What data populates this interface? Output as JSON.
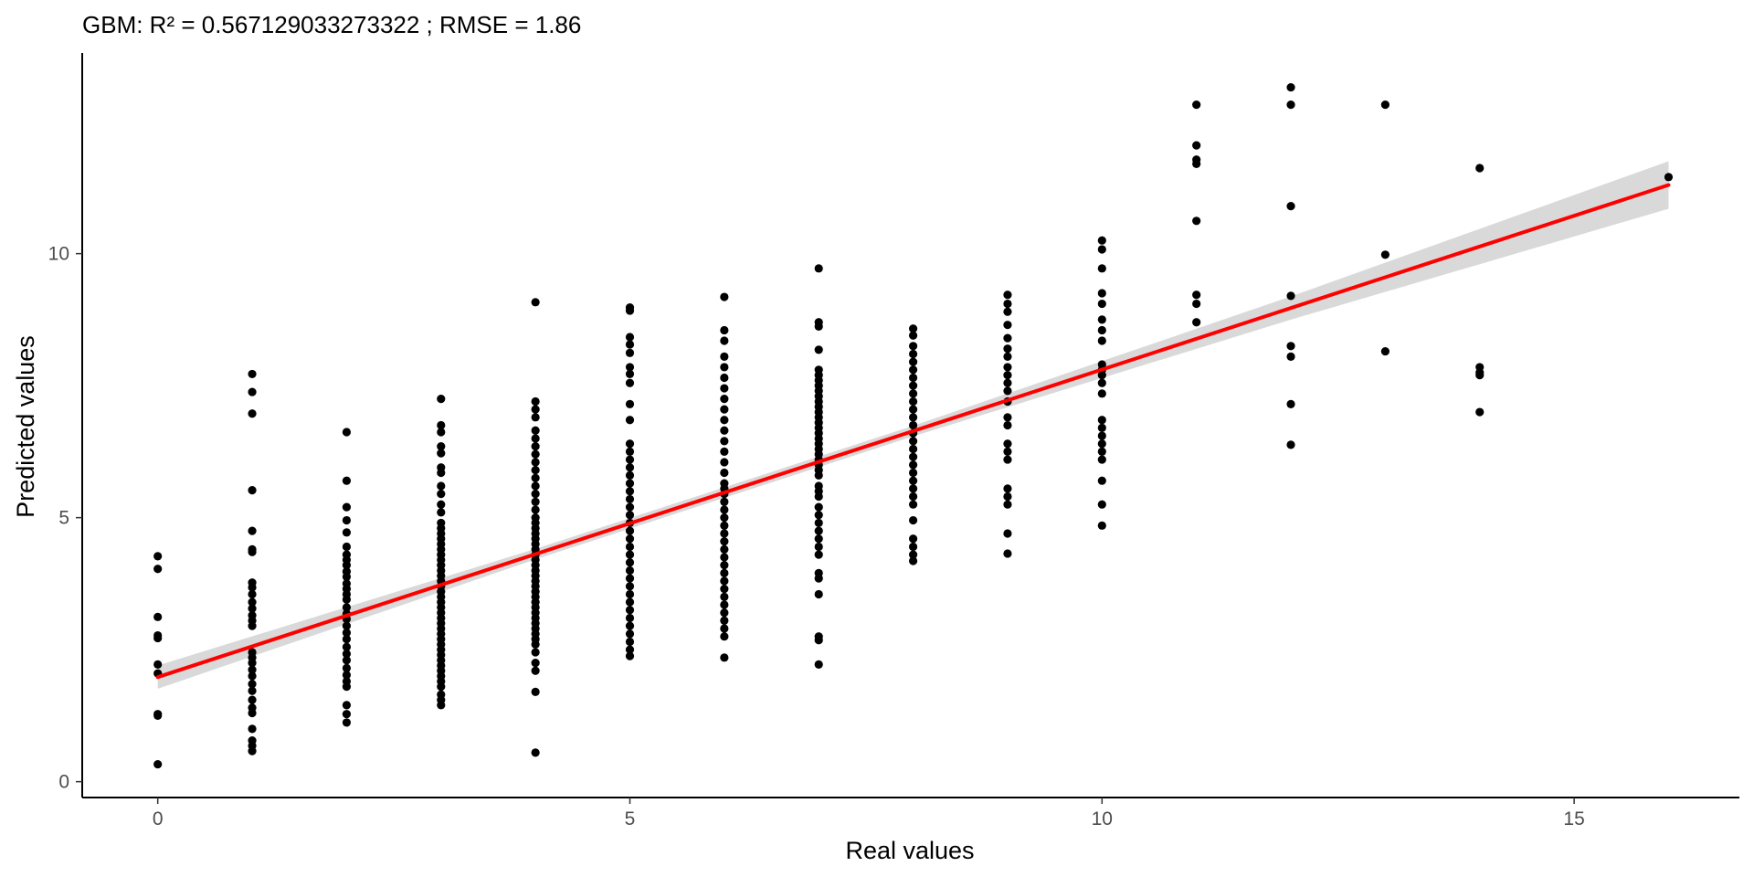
{
  "chart_data": {
    "type": "scatter",
    "title": "GBM: R² =  0.567129033273322 ; RMSE =  1.86",
    "xlabel": "Real values",
    "ylabel": "Predicted values",
    "xlim": [
      -0.8,
      16.75
    ],
    "ylim": [
      -0.3,
      13.8
    ],
    "x_ticks": [
      0,
      5,
      10,
      15
    ],
    "y_ticks": [
      0,
      5,
      10
    ],
    "grid": false,
    "legend": "none",
    "colors": {
      "points": "#000000",
      "fit_line": "#ff0000",
      "confidence_band": "#d9d9d9",
      "axis": "#000000",
      "tick_text": "#4d4d4d"
    },
    "fit_line": {
      "method": "linear",
      "x": [
        0,
        16
      ],
      "y": [
        1.98,
        11.3
      ],
      "ci_halfwidth_at": {
        "0": 0.22,
        "4": 0.1,
        "8": 0.1,
        "12": 0.22,
        "16": 0.45
      }
    },
    "points": [
      [
        0,
        4.27
      ],
      [
        0,
        4.03
      ],
      [
        0,
        3.12
      ],
      [
        0,
        2.77
      ],
      [
        0,
        2.72
      ],
      [
        0,
        2.22
      ],
      [
        0,
        2.05
      ],
      [
        0,
        1.28
      ],
      [
        0,
        1.25
      ],
      [
        0,
        0.33
      ],
      [
        1,
        7.72
      ],
      [
        1,
        7.38
      ],
      [
        1,
        6.97
      ],
      [
        1,
        5.52
      ],
      [
        1,
        4.75
      ],
      [
        1,
        4.4
      ],
      [
        1,
        4.35
      ],
      [
        1,
        3.77
      ],
      [
        1,
        3.68
      ],
      [
        1,
        3.55
      ],
      [
        1,
        3.4
      ],
      [
        1,
        3.28
      ],
      [
        1,
        3.15
      ],
      [
        1,
        3.05
      ],
      [
        1,
        2.95
      ],
      [
        1,
        2.45
      ],
      [
        1,
        2.35
      ],
      [
        1,
        2.25
      ],
      [
        1,
        2.12
      ],
      [
        1,
        2.0
      ],
      [
        1,
        1.85
      ],
      [
        1,
        1.72
      ],
      [
        1,
        1.55
      ],
      [
        1,
        1.4
      ],
      [
        1,
        1.3
      ],
      [
        1,
        1.0
      ],
      [
        1,
        0.78
      ],
      [
        1,
        0.68
      ],
      [
        1,
        0.58
      ],
      [
        2,
        6.62
      ],
      [
        2,
        5.7
      ],
      [
        2,
        5.2
      ],
      [
        2,
        4.95
      ],
      [
        2,
        4.72
      ],
      [
        2,
        4.45
      ],
      [
        2,
        4.3
      ],
      [
        2,
        4.2
      ],
      [
        2,
        4.1
      ],
      [
        2,
        3.98
      ],
      [
        2,
        3.88
      ],
      [
        2,
        3.75
      ],
      [
        2,
        3.65
      ],
      [
        2,
        3.55
      ],
      [
        2,
        3.45
      ],
      [
        2,
        3.3
      ],
      [
        2,
        3.18
      ],
      [
        2,
        3.08
      ],
      [
        2,
        2.95
      ],
      [
        2,
        2.82
      ],
      [
        2,
        2.7
      ],
      [
        2,
        2.55
      ],
      [
        2,
        2.42
      ],
      [
        2,
        2.3
      ],
      [
        2,
        2.15
      ],
      [
        2,
        2.02
      ],
      [
        2,
        1.9
      ],
      [
        2,
        1.8
      ],
      [
        2,
        1.45
      ],
      [
        2,
        1.28
      ],
      [
        2,
        1.12
      ],
      [
        3,
        7.25
      ],
      [
        3,
        6.75
      ],
      [
        3,
        6.62
      ],
      [
        3,
        6.35
      ],
      [
        3,
        6.22
      ],
      [
        3,
        5.95
      ],
      [
        3,
        5.85
      ],
      [
        3,
        5.6
      ],
      [
        3,
        5.45
      ],
      [
        3,
        5.25
      ],
      [
        3,
        5.1
      ],
      [
        3,
        4.9
      ],
      [
        3,
        4.8
      ],
      [
        3,
        4.7
      ],
      [
        3,
        4.6
      ],
      [
        3,
        4.5
      ],
      [
        3,
        4.4
      ],
      [
        3,
        4.3
      ],
      [
        3,
        4.2
      ],
      [
        3,
        4.1
      ],
      [
        3,
        4.0
      ],
      [
        3,
        3.9
      ],
      [
        3,
        3.8
      ],
      [
        3,
        3.7
      ],
      [
        3,
        3.6
      ],
      [
        3,
        3.5
      ],
      [
        3,
        3.4
      ],
      [
        3,
        3.3
      ],
      [
        3,
        3.2
      ],
      [
        3,
        3.1
      ],
      [
        3,
        3.0
      ],
      [
        3,
        2.9
      ],
      [
        3,
        2.8
      ],
      [
        3,
        2.7
      ],
      [
        3,
        2.6
      ],
      [
        3,
        2.5
      ],
      [
        3,
        2.4
      ],
      [
        3,
        2.3
      ],
      [
        3,
        2.2
      ],
      [
        3,
        2.1
      ],
      [
        3,
        2.0
      ],
      [
        3,
        1.9
      ],
      [
        3,
        1.8
      ],
      [
        3,
        1.65
      ],
      [
        3,
        1.55
      ],
      [
        3,
        1.45
      ],
      [
        4,
        9.08
      ],
      [
        4,
        7.2
      ],
      [
        4,
        7.05
      ],
      [
        4,
        6.9
      ],
      [
        4,
        6.65
      ],
      [
        4,
        6.5
      ],
      [
        4,
        6.35
      ],
      [
        4,
        6.2
      ],
      [
        4,
        6.05
      ],
      [
        4,
        5.9
      ],
      [
        4,
        5.75
      ],
      [
        4,
        5.6
      ],
      [
        4,
        5.45
      ],
      [
        4,
        5.3
      ],
      [
        4,
        5.15
      ],
      [
        4,
        5.0
      ],
      [
        4,
        4.9
      ],
      [
        4,
        4.8
      ],
      [
        4,
        4.7
      ],
      [
        4,
        4.6
      ],
      [
        4,
        4.5
      ],
      [
        4,
        4.4
      ],
      [
        4,
        4.3
      ],
      [
        4,
        4.2
      ],
      [
        4,
        4.1
      ],
      [
        4,
        4.0
      ],
      [
        4,
        3.9
      ],
      [
        4,
        3.8
      ],
      [
        4,
        3.7
      ],
      [
        4,
        3.6
      ],
      [
        4,
        3.5
      ],
      [
        4,
        3.4
      ],
      [
        4,
        3.3
      ],
      [
        4,
        3.2
      ],
      [
        4,
        3.1
      ],
      [
        4,
        3.0
      ],
      [
        4,
        2.9
      ],
      [
        4,
        2.8
      ],
      [
        4,
        2.7
      ],
      [
        4,
        2.6
      ],
      [
        4,
        2.45
      ],
      [
        4,
        2.25
      ],
      [
        4,
        2.1
      ],
      [
        4,
        1.7
      ],
      [
        4,
        0.55
      ],
      [
        5,
        8.98
      ],
      [
        5,
        8.92
      ],
      [
        5,
        8.42
      ],
      [
        5,
        8.28
      ],
      [
        5,
        8.12
      ],
      [
        5,
        7.85
      ],
      [
        5,
        7.72
      ],
      [
        5,
        7.55
      ],
      [
        5,
        7.15
      ],
      [
        5,
        6.85
      ],
      [
        5,
        6.4
      ],
      [
        5,
        6.25
      ],
      [
        5,
        6.1
      ],
      [
        5,
        5.95
      ],
      [
        5,
        5.8
      ],
      [
        5,
        5.65
      ],
      [
        5,
        5.5
      ],
      [
        5,
        5.35
      ],
      [
        5,
        5.2
      ],
      [
        5,
        5.05
      ],
      [
        5,
        4.9
      ],
      [
        5,
        4.75
      ],
      [
        5,
        4.6
      ],
      [
        5,
        4.45
      ],
      [
        5,
        4.3
      ],
      [
        5,
        4.15
      ],
      [
        5,
        4.0
      ],
      [
        5,
        3.85
      ],
      [
        5,
        3.7
      ],
      [
        5,
        3.55
      ],
      [
        5,
        3.4
      ],
      [
        5,
        3.25
      ],
      [
        5,
        3.1
      ],
      [
        5,
        2.95
      ],
      [
        5,
        2.8
      ],
      [
        5,
        2.65
      ],
      [
        5,
        2.5
      ],
      [
        5,
        2.38
      ],
      [
        6,
        9.18
      ],
      [
        6,
        8.55
      ],
      [
        6,
        8.35
      ],
      [
        6,
        8.05
      ],
      [
        6,
        7.85
      ],
      [
        6,
        7.65
      ],
      [
        6,
        7.45
      ],
      [
        6,
        7.25
      ],
      [
        6,
        7.05
      ],
      [
        6,
        6.85
      ],
      [
        6,
        6.65
      ],
      [
        6,
        6.45
      ],
      [
        6,
        6.25
      ],
      [
        6,
        6.05
      ],
      [
        6,
        5.85
      ],
      [
        6,
        5.65
      ],
      [
        6,
        5.55
      ],
      [
        6,
        5.45
      ],
      [
        6,
        5.3
      ],
      [
        6,
        5.15
      ],
      [
        6,
        5.0
      ],
      [
        6,
        4.85
      ],
      [
        6,
        4.7
      ],
      [
        6,
        4.55
      ],
      [
        6,
        4.4
      ],
      [
        6,
        4.25
      ],
      [
        6,
        4.1
      ],
      [
        6,
        3.95
      ],
      [
        6,
        3.8
      ],
      [
        6,
        3.65
      ],
      [
        6,
        3.5
      ],
      [
        6,
        3.35
      ],
      [
        6,
        3.2
      ],
      [
        6,
        3.05
      ],
      [
        6,
        2.9
      ],
      [
        6,
        2.75
      ],
      [
        6,
        2.35
      ],
      [
        7,
        9.72
      ],
      [
        7,
        8.7
      ],
      [
        7,
        8.62
      ],
      [
        7,
        8.18
      ],
      [
        7,
        7.8
      ],
      [
        7,
        7.7
      ],
      [
        7,
        7.6
      ],
      [
        7,
        7.5
      ],
      [
        7,
        7.4
      ],
      [
        7,
        7.3
      ],
      [
        7,
        7.2
      ],
      [
        7,
        7.1
      ],
      [
        7,
        7.0
      ],
      [
        7,
        6.9
      ],
      [
        7,
        6.8
      ],
      [
        7,
        6.7
      ],
      [
        7,
        6.6
      ],
      [
        7,
        6.5
      ],
      [
        7,
        6.4
      ],
      [
        7,
        6.3
      ],
      [
        7,
        6.2
      ],
      [
        7,
        6.1
      ],
      [
        7,
        6.0
      ],
      [
        7,
        5.9
      ],
      [
        7,
        5.8
      ],
      [
        7,
        5.6
      ],
      [
        7,
        5.5
      ],
      [
        7,
        5.4
      ],
      [
        7,
        5.2
      ],
      [
        7,
        5.05
      ],
      [
        7,
        4.9
      ],
      [
        7,
        4.75
      ],
      [
        7,
        4.6
      ],
      [
        7,
        4.45
      ],
      [
        7,
        4.3
      ],
      [
        7,
        3.95
      ],
      [
        7,
        3.85
      ],
      [
        7,
        3.55
      ],
      [
        7,
        2.75
      ],
      [
        7,
        2.68
      ],
      [
        7,
        2.22
      ],
      [
        8,
        8.58
      ],
      [
        8,
        8.45
      ],
      [
        8,
        8.25
      ],
      [
        8,
        8.1
      ],
      [
        8,
        7.95
      ],
      [
        8,
        7.8
      ],
      [
        8,
        7.65
      ],
      [
        8,
        7.5
      ],
      [
        8,
        7.35
      ],
      [
        8,
        7.2
      ],
      [
        8,
        7.05
      ],
      [
        8,
        6.9
      ],
      [
        8,
        6.75
      ],
      [
        8,
        6.6
      ],
      [
        8,
        6.45
      ],
      [
        8,
        6.3
      ],
      [
        8,
        6.15
      ],
      [
        8,
        6.0
      ],
      [
        8,
        5.85
      ],
      [
        8,
        5.7
      ],
      [
        8,
        5.55
      ],
      [
        8,
        5.4
      ],
      [
        8,
        5.25
      ],
      [
        8,
        4.95
      ],
      [
        8,
        4.6
      ],
      [
        8,
        4.45
      ],
      [
        8,
        4.3
      ],
      [
        8,
        4.18
      ],
      [
        9,
        9.22
      ],
      [
        9,
        9.05
      ],
      [
        9,
        8.9
      ],
      [
        9,
        8.65
      ],
      [
        9,
        8.4
      ],
      [
        9,
        8.2
      ],
      [
        9,
        8.05
      ],
      [
        9,
        7.85
      ],
      [
        9,
        7.7
      ],
      [
        9,
        7.55
      ],
      [
        9,
        7.4
      ],
      [
        9,
        7.2
      ],
      [
        9,
        6.9
      ],
      [
        9,
        6.75
      ],
      [
        9,
        6.4
      ],
      [
        9,
        6.25
      ],
      [
        9,
        6.1
      ],
      [
        9,
        5.55
      ],
      [
        9,
        5.4
      ],
      [
        9,
        5.25
      ],
      [
        9,
        4.7
      ],
      [
        9,
        4.32
      ],
      [
        10,
        10.25
      ],
      [
        10,
        10.08
      ],
      [
        10,
        9.72
      ],
      [
        10,
        9.25
      ],
      [
        10,
        9.05
      ],
      [
        10,
        8.75
      ],
      [
        10,
        8.55
      ],
      [
        10,
        8.35
      ],
      [
        10,
        7.9
      ],
      [
        10,
        7.8
      ],
      [
        10,
        7.7
      ],
      [
        10,
        7.55
      ],
      [
        10,
        7.35
      ],
      [
        10,
        6.85
      ],
      [
        10,
        6.7
      ],
      [
        10,
        6.55
      ],
      [
        10,
        6.4
      ],
      [
        10,
        6.25
      ],
      [
        10,
        6.1
      ],
      [
        10,
        5.7
      ],
      [
        10,
        5.25
      ],
      [
        10,
        4.85
      ],
      [
        11,
        12.82
      ],
      [
        11,
        12.05
      ],
      [
        11,
        11.78
      ],
      [
        11,
        11.7
      ],
      [
        11,
        10.62
      ],
      [
        11,
        9.22
      ],
      [
        11,
        9.05
      ],
      [
        11,
        8.7
      ],
      [
        12,
        13.15
      ],
      [
        12,
        12.82
      ],
      [
        12,
        10.9
      ],
      [
        12,
        9.2
      ],
      [
        12,
        8.25
      ],
      [
        12,
        8.05
      ],
      [
        12,
        7.15
      ],
      [
        12,
        6.38
      ],
      [
        13,
        12.82
      ],
      [
        13,
        9.98
      ],
      [
        13,
        8.15
      ],
      [
        14,
        11.62
      ],
      [
        14,
        7.85
      ],
      [
        14,
        7.75
      ],
      [
        14,
        7.7
      ],
      [
        14,
        7.0
      ],
      [
        16,
        11.45
      ]
    ]
  }
}
